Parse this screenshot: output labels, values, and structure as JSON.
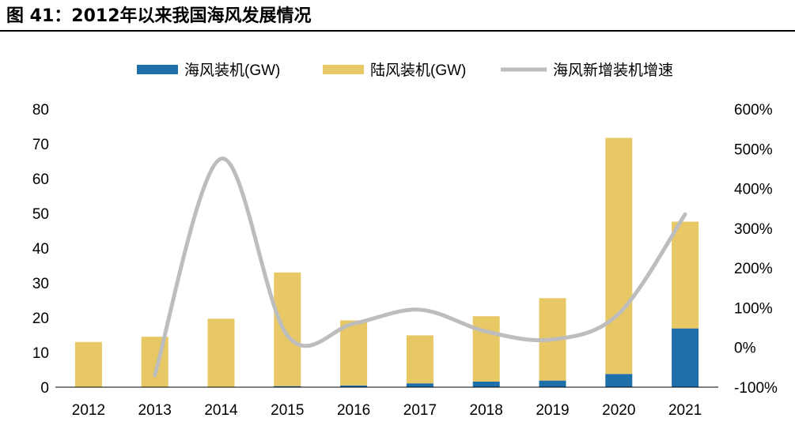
{
  "figure": {
    "title": "图 41：2012年以来我国海风发展情况"
  },
  "chart_data": {
    "type": "bar",
    "stacked": true,
    "categories": [
      "2012",
      "2013",
      "2014",
      "2015",
      "2016",
      "2017",
      "2018",
      "2019",
      "2020",
      "2021"
    ],
    "series": [
      {
        "name": "海风装机(GW)",
        "type": "bar",
        "axis": "left",
        "color": "#1f6fab",
        "values": [
          0,
          0,
          0,
          0.3,
          0.5,
          1.1,
          1.6,
          1.9,
          3.8,
          16.9
        ]
      },
      {
        "name": "陆风装机(GW)",
        "type": "bar",
        "axis": "left",
        "color": "#e8c864",
        "values": [
          13,
          14.5,
          19.7,
          32.7,
          18.7,
          13.8,
          18.8,
          23.7,
          67.9,
          30.7
        ]
      },
      {
        "name": "海风新增装机增速",
        "type": "line",
        "axis": "right",
        "color": "#bdbdbd",
        "values": [
          null,
          -70,
          475,
          30,
          60,
          95,
          40,
          20,
          85,
          335
        ]
      }
    ],
    "y_left": {
      "min": 0,
      "max": 80,
      "ticks": [
        "0",
        "10",
        "20",
        "30",
        "40",
        "50",
        "60",
        "70",
        "80"
      ]
    },
    "y_right": {
      "min": -100,
      "max": 600,
      "ticks": [
        "-100%",
        "0%",
        "100%",
        "200%",
        "300%",
        "400%",
        "500%",
        "600%"
      ]
    },
    "legend_position": "top",
    "grid": false
  }
}
